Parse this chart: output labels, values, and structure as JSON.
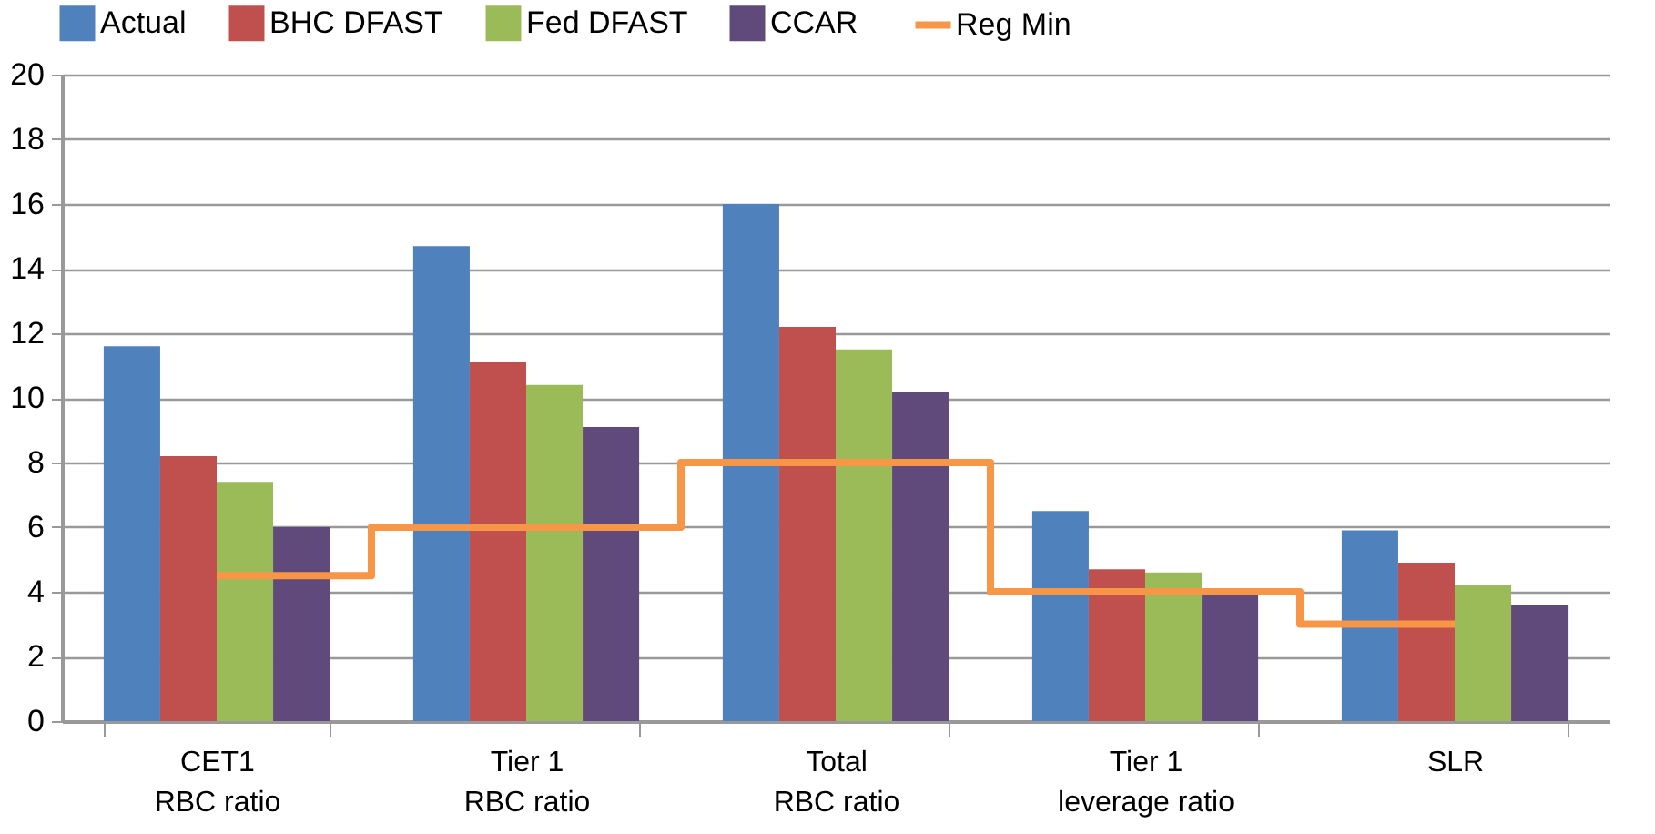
{
  "chart_data": {
    "type": "bar",
    "categories": [
      "CET1\nRBC ratio",
      "Tier 1\nRBC ratio",
      "Total\nRBC ratio",
      "Tier 1\nleverage ratio",
      "SLR"
    ],
    "series": [
      {
        "name": "Actual",
        "color": "#4f81bd",
        "values": [
          11.6,
          14.7,
          16.0,
          6.5,
          5.9
        ]
      },
      {
        "name": "BHC DFAST",
        "color": "#c0504d",
        "values": [
          8.2,
          11.1,
          12.2,
          4.7,
          4.9
        ]
      },
      {
        "name": "Fed DFAST",
        "color": "#9bbb59",
        "values": [
          7.4,
          10.4,
          11.5,
          4.6,
          4.2
        ]
      },
      {
        "name": "CCAR",
        "color": "#604a7b",
        "values": [
          6.0,
          9.1,
          10.2,
          3.9,
          3.6
        ]
      },
      {
        "name": "Reg Min",
        "type": "step",
        "color": "#f79646",
        "values": [
          4.5,
          6,
          8,
          4,
          3
        ]
      }
    ],
    "ylim": [
      0,
      20
    ],
    "yticks": [
      0,
      2,
      4,
      6,
      8,
      10,
      12,
      14,
      16,
      18,
      20
    ],
    "grid": "y",
    "legend": "top"
  }
}
